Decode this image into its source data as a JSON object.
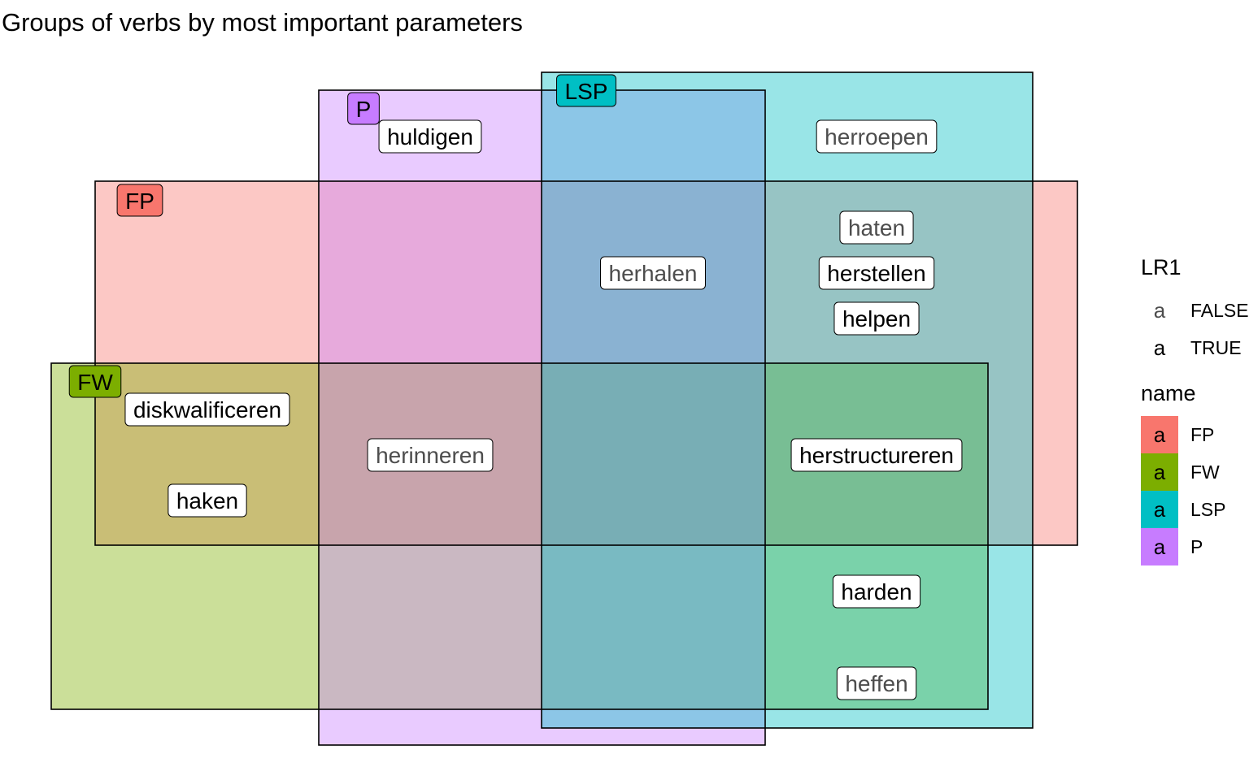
{
  "title": "Groups of verbs by most important parameters",
  "colors": {
    "FP": "#F8766D",
    "FW": "#7CAE00",
    "LSP": "#00BFC4",
    "P": "#C77CFF",
    "label_true": "#000000",
    "label_false": "#4D4D4D",
    "border": "#000000"
  },
  "sets": [
    {
      "name": "FP",
      "label": "FP"
    },
    {
      "name": "FW",
      "label": "FW"
    },
    {
      "name": "P",
      "label": "P"
    },
    {
      "name": "LSP",
      "label": "LSP"
    }
  ],
  "verbs": [
    {
      "text": "huldigen",
      "sets": [
        "P"
      ],
      "LR1": true
    },
    {
      "text": "herroepen",
      "sets": [
        "LSP"
      ],
      "LR1": false
    },
    {
      "text": "herhalen",
      "sets": [
        "FP",
        "P",
        "LSP"
      ],
      "LR1": false
    },
    {
      "text": "haten",
      "sets": [
        "FP",
        "LSP"
      ],
      "LR1": false
    },
    {
      "text": "herstellen",
      "sets": [
        "FP",
        "LSP"
      ],
      "LR1": true
    },
    {
      "text": "helpen",
      "sets": [
        "FP",
        "LSP"
      ],
      "LR1": true
    },
    {
      "text": "diskwalificeren",
      "sets": [
        "FP",
        "FW"
      ],
      "LR1": true
    },
    {
      "text": "haken",
      "sets": [
        "FP",
        "FW"
      ],
      "LR1": true
    },
    {
      "text": "herinneren",
      "sets": [
        "FP",
        "FW",
        "P"
      ],
      "LR1": false
    },
    {
      "text": "herstructureren",
      "sets": [
        "FP",
        "FW",
        "LSP"
      ],
      "LR1": true
    },
    {
      "text": "harden",
      "sets": [
        "FW",
        "LSP"
      ],
      "LR1": true
    },
    {
      "text": "heffen",
      "sets": [
        "FW",
        "LSP"
      ],
      "LR1": false
    }
  ],
  "legend": {
    "lr1_title": "LR1",
    "lr1_items": [
      {
        "key": "a",
        "label": "FALSE",
        "color": "#4D4D4D"
      },
      {
        "key": "a",
        "label": "TRUE",
        "color": "#000000"
      }
    ],
    "name_title": "name",
    "name_items": [
      {
        "key": "a",
        "label": "FP",
        "color": "#F8766D"
      },
      {
        "key": "a",
        "label": "FW",
        "color": "#7CAE00"
      },
      {
        "key": "a",
        "label": "LSP",
        "color": "#00BFC4"
      },
      {
        "key": "a",
        "label": "P",
        "color": "#C77CFF"
      }
    ]
  }
}
